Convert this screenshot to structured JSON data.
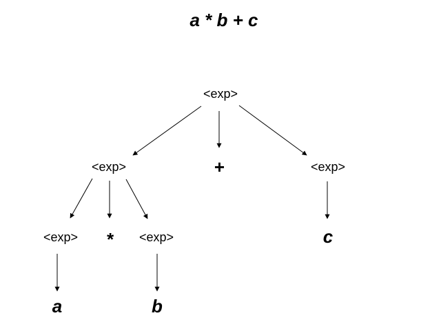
{
  "title": "a * b + c",
  "nodes": {
    "root": "<exp>",
    "left_exp": "<exp>",
    "plus": "+",
    "right_exp": "<exp>",
    "ll_exp": "<exp>",
    "star": "*",
    "lr_exp": "<exp>",
    "c": "c",
    "a": "a",
    "b": "b"
  }
}
